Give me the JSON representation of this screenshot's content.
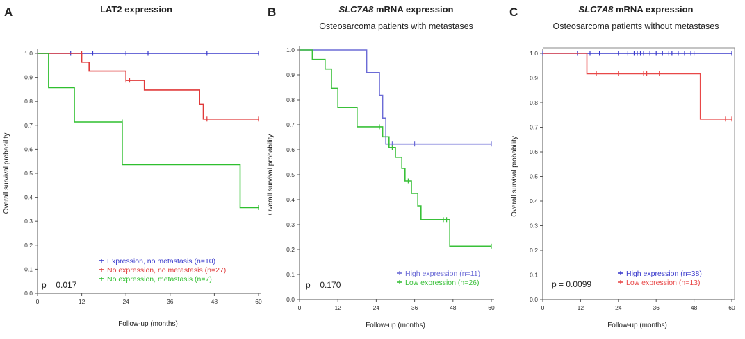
{
  "chart_data": [
    {
      "type": "line",
      "panel_letter": "A",
      "title": "LAT2 expression",
      "title_italic_part": "",
      "subtitle": "",
      "xlabel": "Follow-up (months)",
      "ylabel": "Overall survival probability",
      "xlim": [
        0,
        60
      ],
      "ylim": [
        0,
        1
      ],
      "xticks": [
        0,
        12,
        24,
        36,
        48,
        60
      ],
      "xtick_labels": [
        "0",
        "12",
        "24",
        "36",
        "48",
        "60"
      ],
      "yticks": [
        0,
        0.1,
        0.2,
        0.3,
        0.4,
        0.5,
        0.6,
        0.7,
        0.8,
        0.9,
        1.0
      ],
      "ytick_labels": [
        "0.0",
        "0.1",
        "0.2",
        "0.3",
        "0.4",
        "0.5",
        "0.6",
        "0.7",
        "0.8",
        "0.9",
        "1.0"
      ],
      "annotation": "p = 0.017",
      "legend_position": "bottom-right",
      "series": [
        {
          "name": "Expression, no metastasis (n=10)",
          "color": "#3b3bcc",
          "x": [
            0,
            60
          ],
          "y": [
            1.0,
            1.0
          ],
          "censors": [
            [
              9,
              1.0
            ],
            [
              15,
              1.0
            ],
            [
              24,
              1.0
            ],
            [
              30,
              1.0
            ],
            [
              46,
              1.0
            ],
            [
              60,
              1.0
            ]
          ]
        },
        {
          "name": "No expression, no metastasis (n=27)",
          "color": "#e03a3a",
          "x": [
            0,
            12,
            12,
            14,
            14,
            24,
            24,
            29,
            29,
            44,
            44,
            45,
            45,
            60
          ],
          "y": [
            1.0,
            1.0,
            0.963,
            0.963,
            0.926,
            0.926,
            0.887,
            0.887,
            0.847,
            0.847,
            0.788,
            0.788,
            0.726,
            0.726
          ],
          "censors": [
            [
              12,
              1.0
            ],
            [
              24,
              0.888
            ],
            [
              25,
              0.888
            ],
            [
              46,
              0.726
            ],
            [
              60,
              0.726
            ]
          ]
        },
        {
          "name": "No expression, metastasis (n=7)",
          "color": "#2fbf2f",
          "x": [
            0,
            3,
            3,
            10,
            10,
            23,
            23,
            55,
            55,
            60
          ],
          "y": [
            1.0,
            1.0,
            0.857,
            0.857,
            0.714,
            0.714,
            0.536,
            0.536,
            0.357,
            0.357
          ],
          "censors": [
            [
              23,
              0.714
            ],
            [
              60,
              0.357
            ]
          ]
        }
      ]
    },
    {
      "type": "line",
      "panel_letter": "B",
      "title": " mRNA expression",
      "title_italic_part": "SLC7A8",
      "subtitle": "Osteosarcoma patients with metastases",
      "xlabel": "Follow-up (months)",
      "ylabel": "Overall survival probability",
      "xlim": [
        0,
        60
      ],
      "ylim": [
        0,
        1
      ],
      "xticks": [
        0,
        12,
        24,
        36,
        48,
        60
      ],
      "xtick_labels": [
        "0",
        "12",
        "24",
        "36",
        "48",
        "60"
      ],
      "yticks": [
        0,
        0.1,
        0.2,
        0.3,
        0.4,
        0.5,
        0.6,
        0.7,
        0.8,
        0.9,
        1.0
      ],
      "ytick_labels": [
        "0.0",
        "0.1",
        "0.2",
        "0.3",
        "0.4",
        "0.5",
        "0.6",
        "0.7",
        "0.8",
        "0.9",
        "1.0"
      ],
      "annotation": "p = 0.170",
      "legend_position": "bottom-right",
      "series": [
        {
          "name": "High expression (n=11)",
          "color": "#6b6bd6",
          "x": [
            0,
            21,
            21,
            25,
            25,
            26,
            26,
            27,
            27,
            60
          ],
          "y": [
            1.0,
            1.0,
            0.909,
            0.909,
            0.818,
            0.818,
            0.727,
            0.727,
            0.623,
            0.623
          ],
          "censors": [
            [
              29,
              0.623
            ],
            [
              36,
              0.623
            ],
            [
              60,
              0.623
            ]
          ]
        },
        {
          "name": "Low expression (n=26)",
          "color": "#39c039",
          "x": [
            0,
            4,
            4,
            8,
            8,
            10,
            10,
            12,
            12,
            18,
            18,
            26,
            26,
            28,
            28,
            30,
            30,
            32,
            32,
            33,
            33,
            35,
            35,
            37,
            37,
            38,
            38,
            40,
            40,
            47,
            47,
            60
          ],
          "y": [
            1.0,
            1.0,
            0.962,
            0.962,
            0.923,
            0.923,
            0.846,
            0.846,
            0.769,
            0.769,
            0.692,
            0.692,
            0.652,
            0.652,
            0.609,
            0.609,
            0.57,
            0.57,
            0.525,
            0.525,
            0.475,
            0.475,
            0.425,
            0.425,
            0.375,
            0.375,
            0.32,
            0.32,
            0.32,
            0.32,
            0.213,
            0.213
          ],
          "censors": [
            [
              25,
              0.692
            ],
            [
              29,
              0.609
            ],
            [
              34,
              0.475
            ],
            [
              45,
              0.32
            ],
            [
              46,
              0.32
            ],
            [
              60,
              0.213
            ]
          ]
        }
      ]
    },
    {
      "type": "line",
      "panel_letter": "C",
      "title": " mRNA expression",
      "title_italic_part": "SLC7A8",
      "subtitle": "Osteosarcoma patients without metastases",
      "xlabel": "Follow-up (months)",
      "ylabel": "Overall survival probability",
      "xlim": [
        0,
        60
      ],
      "ylim": [
        0,
        1
      ],
      "xticks": [
        0,
        12,
        24,
        36,
        48,
        60
      ],
      "xtick_labels": [
        "0",
        "12",
        "24",
        "36",
        "48",
        "60"
      ],
      "yticks": [
        0,
        0.1,
        0.2,
        0.3,
        0.4,
        0.5,
        0.6,
        0.7,
        0.8,
        0.9,
        1.0
      ],
      "ytick_labels": [
        "0.0",
        "0.1",
        "0.2",
        "0.3",
        "0.4",
        "0.5",
        "0.6",
        "0.7",
        "0.8",
        "0.9",
        "1.0"
      ],
      "annotation": "p = 0.0099",
      "legend_position": "bottom-right",
      "series": [
        {
          "name": "High expression (n=38)",
          "color": "#3b3bcc",
          "x": [
            0,
            60
          ],
          "y": [
            1.0,
            1.0
          ],
          "censors": [
            [
              0,
              1.0
            ],
            [
              11,
              1.0
            ],
            [
              15,
              1.0
            ],
            [
              18,
              1.0
            ],
            [
              24,
              1.0
            ],
            [
              27,
              1.0
            ],
            [
              29,
              1.0
            ],
            [
              30,
              1.0
            ],
            [
              31,
              1.0
            ],
            [
              32,
              1.0
            ],
            [
              34,
              1.0
            ],
            [
              36,
              1.0
            ],
            [
              38,
              1.0
            ],
            [
              40,
              1.0
            ],
            [
              41,
              1.0
            ],
            [
              43,
              1.0
            ],
            [
              45,
              1.0
            ],
            [
              47,
              1.0
            ],
            [
              48,
              1.0
            ],
            [
              60,
              1.0
            ]
          ]
        },
        {
          "name": "Low expression (n=13)",
          "color": "#e84848",
          "x": [
            0,
            14,
            14,
            50,
            50,
            60
          ],
          "y": [
            1.0,
            1.0,
            0.917,
            0.917,
            0.733,
            0.733
          ],
          "censors": [
            [
              17,
              0.917
            ],
            [
              24,
              0.917
            ],
            [
              32,
              0.917
            ],
            [
              33,
              0.917
            ],
            [
              37,
              0.917
            ],
            [
              58,
              0.733
            ],
            [
              60,
              0.733
            ]
          ]
        }
      ]
    }
  ]
}
